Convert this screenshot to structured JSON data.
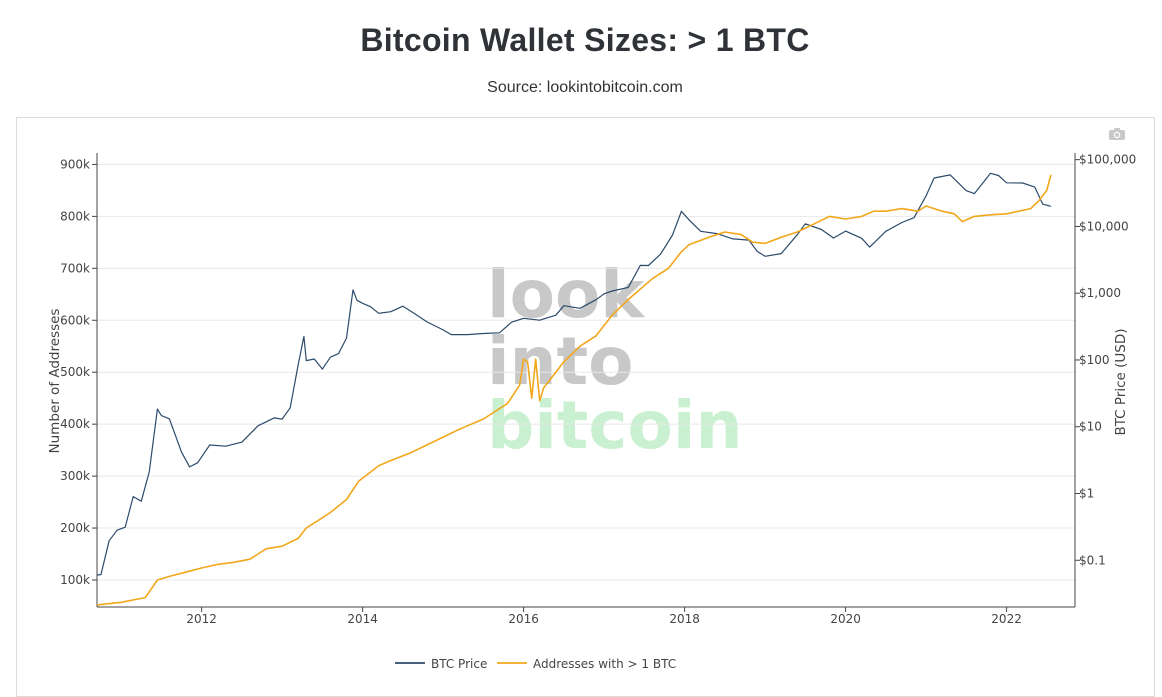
{
  "page": {
    "title": "Bitcoin Wallet Sizes: > 1 BTC",
    "subtitle": "Source: lookintobitcoin.com"
  },
  "toolbar": {
    "camera_icon": "camera-icon"
  },
  "watermark": {
    "line1": "look",
    "line2": "into",
    "line3": "bitcoin",
    "color1": "#c8c8c8",
    "color3": "#c9f0d0"
  },
  "chart_data": {
    "type": "line",
    "title": "Bitcoin Wallet Sizes: > 1 BTC",
    "xlabel": "",
    "ylabel": "Number of Addresses",
    "y2label": "BTC Price (USD)",
    "xlim": [
      2010.7,
      2022.85
    ],
    "ylim": [
      48000,
      922000
    ],
    "y2lim_log": [
      -1.7,
      5.1
    ],
    "y2scale": "log",
    "grid": true,
    "legend": "bottom",
    "x_ticks": [
      2012,
      2014,
      2016,
      2018,
      2020,
      2022
    ],
    "y_ticks": [
      100000,
      200000,
      300000,
      400000,
      500000,
      600000,
      700000,
      800000,
      900000
    ],
    "y_tick_labels": [
      "100k",
      "200k",
      "300k",
      "400k",
      "500k",
      "600k",
      "700k",
      "800k",
      "900k"
    ],
    "y2_ticks": [
      0.1,
      1,
      10,
      100,
      1000,
      10000,
      100000
    ],
    "y2_tick_labels": [
      "$0.1",
      "$1",
      "$10",
      "$100",
      "$1,000",
      "$10,000",
      "$100,000"
    ],
    "series": [
      {
        "name": "BTC Price",
        "axis": "y2",
        "color": "#2c4a6b",
        "x": [
          2010.7,
          2010.75,
          2010.85,
          2010.95,
          2011.05,
          2011.15,
          2011.25,
          2011.35,
          2011.45,
          2011.5,
          2011.6,
          2011.75,
          2011.85,
          2011.95,
          2012.1,
          2012.3,
          2012.5,
          2012.7,
          2012.9,
          2013.0,
          2013.1,
          2013.2,
          2013.27,
          2013.3,
          2013.4,
          2013.5,
          2013.6,
          2013.7,
          2013.8,
          2013.88,
          2013.93,
          2014.0,
          2014.1,
          2014.2,
          2014.35,
          2014.5,
          2014.65,
          2014.8,
          2015.0,
          2015.1,
          2015.3,
          2015.5,
          2015.7,
          2015.85,
          2016.0,
          2016.2,
          2016.4,
          2016.5,
          2016.7,
          2016.9,
          2017.0,
          2017.1,
          2017.3,
          2017.45,
          2017.55,
          2017.7,
          2017.85,
          2017.96,
          2018.05,
          2018.2,
          2018.4,
          2018.6,
          2018.8,
          2018.9,
          2019.0,
          2019.2,
          2019.4,
          2019.5,
          2019.7,
          2019.85,
          2020.0,
          2020.2,
          2020.3,
          2020.5,
          2020.7,
          2020.85,
          2021.0,
          2021.1,
          2021.3,
          2021.5,
          2021.6,
          2021.8,
          2021.9,
          2022.0,
          2022.2,
          2022.35,
          2022.45,
          2022.55
        ],
        "values": [
          0.06,
          0.06,
          0.2,
          0.3,
          0.3,
          0.9,
          0.8,
          2,
          18,
          15,
          14,
          4,
          2.5,
          3,
          5,
          5,
          6,
          11,
          13,
          13,
          20,
          80,
          220,
          100,
          110,
          70,
          110,
          130,
          200,
          1100,
          800,
          750,
          600,
          500,
          550,
          600,
          480,
          380,
          300,
          230,
          240,
          260,
          240,
          360,
          430,
          420,
          450,
          650,
          620,
          750,
          960,
          1100,
          1300,
          2500,
          2600,
          4000,
          7000,
          16500,
          13000,
          9000,
          7500,
          6500,
          6500,
          4000,
          3500,
          4000,
          8000,
          10500,
          9000,
          7000,
          8000,
          6500,
          5000,
          9000,
          11000,
          13500,
          30000,
          50000,
          58000,
          35000,
          33000,
          60000,
          58000,
          47000,
          42000,
          38000,
          22000,
          20000
        ]
      },
      {
        "name": "Addresses with > 1 BTC",
        "axis": "y",
        "color": "#f2a71b",
        "x": [
          2010.7,
          2011.0,
          2011.3,
          2011.45,
          2011.6,
          2011.8,
          2012.0,
          2012.2,
          2012.4,
          2012.6,
          2012.7,
          2012.8,
          2013.0,
          2013.2,
          2013.3,
          2013.45,
          2013.6,
          2013.8,
          2013.95,
          2014.2,
          2014.35,
          2014.6,
          2014.8,
          2015.0,
          2015.2,
          2015.5,
          2015.8,
          2015.95,
          2016.0,
          2016.05,
          2016.1,
          2016.15,
          2016.2,
          2016.25,
          2016.3,
          2016.5,
          2016.7,
          2016.9,
          2017.1,
          2017.3,
          2017.6,
          2017.8,
          2017.95,
          2018.05,
          2018.3,
          2018.5,
          2018.7,
          2018.85,
          2019.0,
          2019.2,
          2019.4,
          2019.6,
          2019.8,
          2020.0,
          2020.2,
          2020.35,
          2020.5,
          2020.7,
          2020.9,
          2021.0,
          2021.2,
          2021.35,
          2021.45,
          2021.6,
          2021.8,
          2022.0,
          2022.15,
          2022.3,
          2022.4,
          2022.5,
          2022.55
        ],
        "values": [
          52000,
          57000,
          66000,
          100000,
          107000,
          115000,
          123000,
          130000,
          134000,
          140000,
          150000,
          160000,
          165000,
          180000,
          200000,
          215000,
          230000,
          255000,
          290000,
          320000,
          330000,
          345000,
          360000,
          375000,
          390000,
          410000,
          440000,
          475000,
          525000,
          520000,
          450000,
          525000,
          445000,
          470000,
          480000,
          520000,
          550000,
          570000,
          610000,
          640000,
          680000,
          700000,
          730000,
          745000,
          760000,
          770000,
          765000,
          750000,
          748000,
          760000,
          770000,
          785000,
          800000,
          795000,
          800000,
          810000,
          810000,
          815000,
          810000,
          820000,
          810000,
          805000,
          790000,
          800000,
          803000,
          805000,
          810000,
          815000,
          830000,
          850000,
          880000
        ]
      }
    ]
  }
}
